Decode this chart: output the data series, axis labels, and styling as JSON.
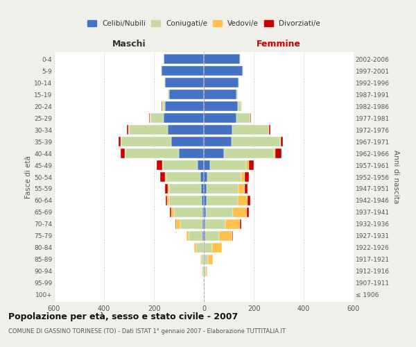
{
  "age_groups": [
    "100+",
    "95-99",
    "90-94",
    "85-89",
    "80-84",
    "75-79",
    "70-74",
    "65-69",
    "60-64",
    "55-59",
    "50-54",
    "45-49",
    "40-44",
    "35-39",
    "30-34",
    "25-29",
    "20-24",
    "15-19",
    "10-14",
    "5-9",
    "0-4"
  ],
  "birth_years": [
    "≤ 1906",
    "1907-1911",
    "1912-1916",
    "1917-1921",
    "1922-1926",
    "1927-1931",
    "1932-1936",
    "1937-1941",
    "1942-1946",
    "1947-1951",
    "1952-1956",
    "1957-1961",
    "1962-1966",
    "1967-1971",
    "1972-1976",
    "1977-1981",
    "1982-1986",
    "1987-1991",
    "1992-1996",
    "1997-2001",
    "2002-2006"
  ],
  "maschi": {
    "celibi": [
      0,
      0,
      0,
      0,
      0,
      5,
      5,
      5,
      8,
      10,
      15,
      25,
      100,
      130,
      145,
      160,
      155,
      140,
      155,
      170,
      160
    ],
    "coniugati": [
      0,
      2,
      5,
      10,
      30,
      55,
      90,
      115,
      130,
      130,
      135,
      140,
      215,
      200,
      155,
      55,
      10,
      5,
      2,
      2,
      2
    ],
    "vedovi": [
      0,
      0,
      2,
      5,
      10,
      10,
      15,
      10,
      8,
      5,
      5,
      3,
      3,
      2,
      2,
      2,
      2,
      0,
      0,
      0,
      0
    ],
    "divorziati": [
      0,
      0,
      0,
      0,
      0,
      0,
      5,
      5,
      8,
      10,
      20,
      20,
      15,
      10,
      5,
      2,
      2,
      0,
      0,
      0,
      0
    ]
  },
  "femmine": {
    "nubili": [
      0,
      0,
      2,
      2,
      2,
      5,
      5,
      8,
      10,
      10,
      15,
      25,
      80,
      110,
      115,
      130,
      135,
      130,
      140,
      155,
      145
    ],
    "coniugate": [
      0,
      2,
      5,
      15,
      30,
      55,
      80,
      110,
      125,
      130,
      135,
      145,
      200,
      195,
      145,
      55,
      15,
      5,
      2,
      2,
      2
    ],
    "vedove": [
      0,
      2,
      8,
      20,
      40,
      55,
      60,
      55,
      40,
      25,
      15,
      10,
      5,
      3,
      2,
      2,
      2,
      0,
      0,
      0,
      0
    ],
    "divorziate": [
      0,
      0,
      0,
      0,
      0,
      2,
      5,
      8,
      10,
      10,
      15,
      20,
      25,
      10,
      5,
      2,
      2,
      0,
      0,
      0,
      0
    ]
  },
  "colors": {
    "celibi": "#4472C4",
    "coniugati": "#c5d9a0",
    "vedovi": "#ffc04d",
    "divorziati": "#cc0000"
  },
  "title": "Popolazione per età, sesso e stato civile - 2007",
  "subtitle": "COMUNE DI GASSINO TORINESE (TO) - Dati ISTAT 1° gennaio 2007 - Elaborazione TUTTITALIA.IT",
  "xlabel_left": "Maschi",
  "xlabel_right": "Femmine",
  "ylabel_left": "Fasce di età",
  "ylabel_right": "Anni di nascita",
  "xlim": 600,
  "bg_color": "#f0f0eb",
  "plot_bg": "#ffffff",
  "legend_labels": [
    "Celibi/Nubili",
    "Coniugati/e",
    "Vedovi/e",
    "Divorziati/e"
  ]
}
